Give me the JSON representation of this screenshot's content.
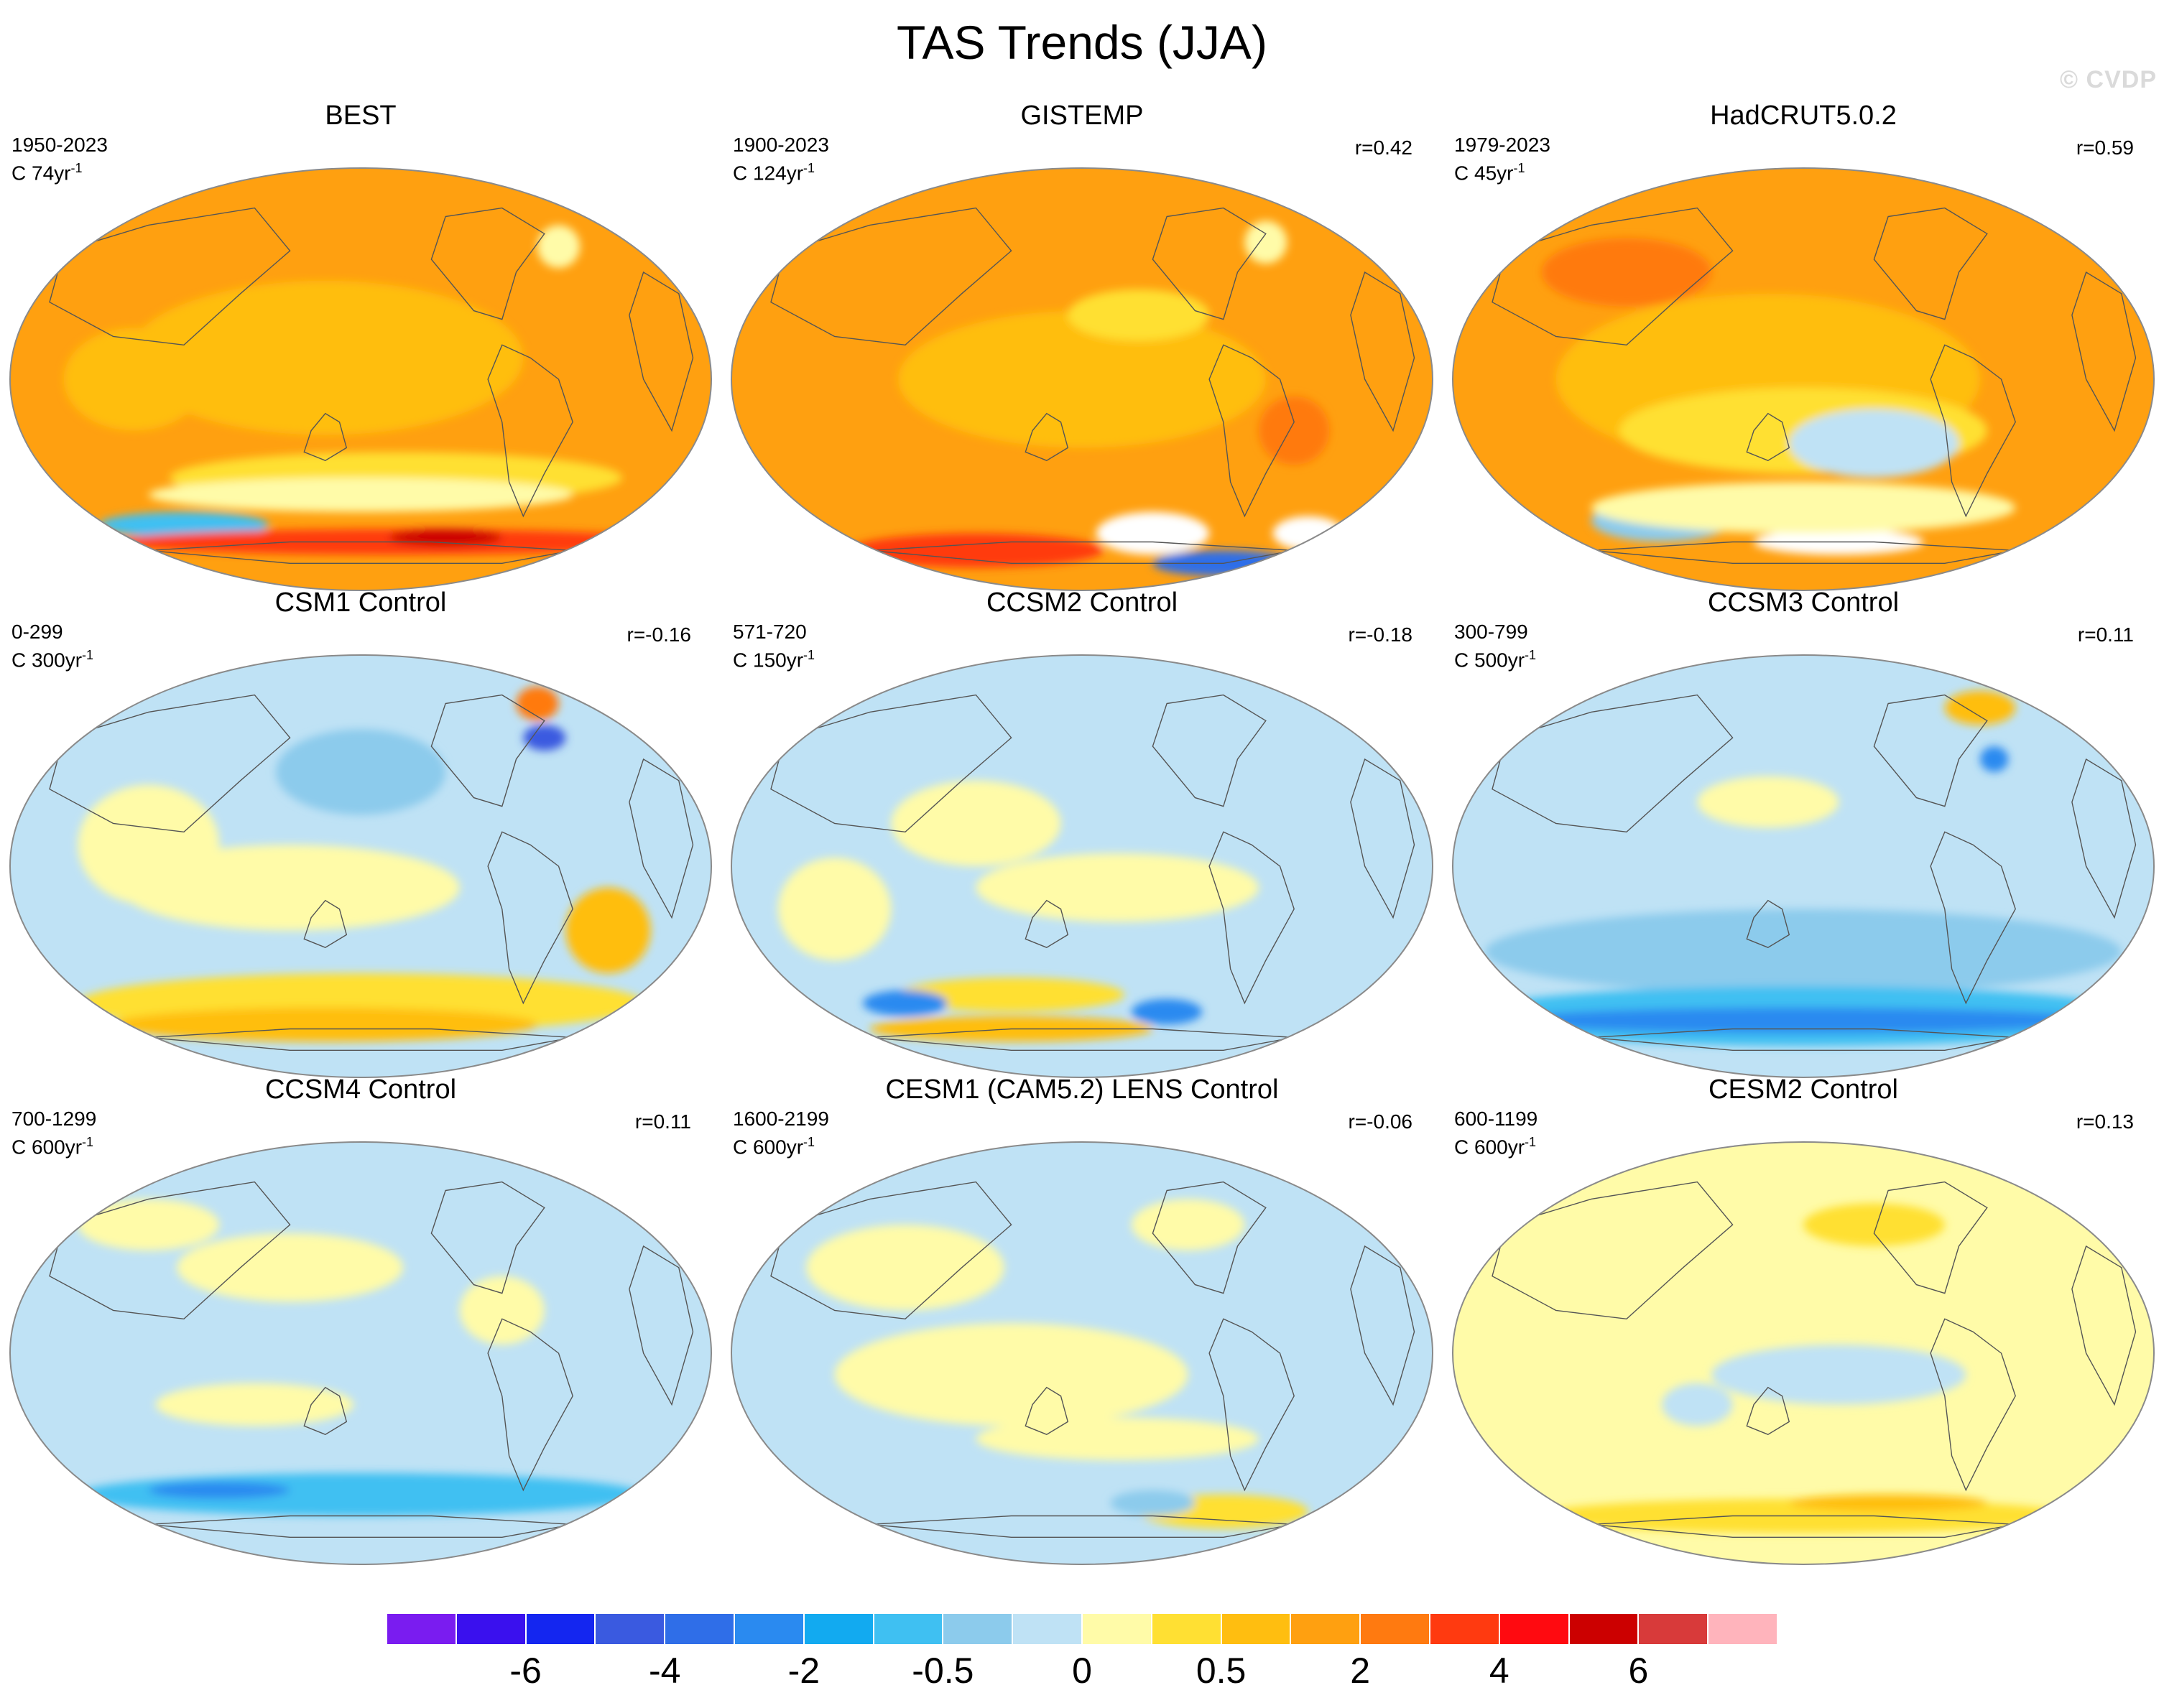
{
  "title": "TAS Trends (JJA)",
  "watermark": "© CVDP",
  "palette": {
    "ocean_base": "#bfe2f5",
    "land_outline": "#555555",
    "colorbar": [
      "#7a1cf0",
      "#3a10ee",
      "#1426f0",
      "#3a5ae0",
      "#2f6ee8",
      "#2a8af0",
      "#12aaf0",
      "#3fc0f2",
      "#8ccbec",
      "#bfe2f5",
      "#fffba8",
      "#ffe033",
      "#ffbe10",
      "#ffa010",
      "#ff7a10",
      "#ff3a10",
      "#ff0a10",
      "#cc0000",
      "#d83a3a",
      "#ffb4bc"
    ]
  },
  "colorbar_labels": [
    {
      "text": "-6",
      "box": 2
    },
    {
      "text": "-4",
      "box": 4
    },
    {
      "text": "-2",
      "box": 6
    },
    {
      "text": "-0.5",
      "box": 8
    },
    {
      "text": "0",
      "box": 10
    },
    {
      "text": "0.5",
      "box": 12
    },
    {
      "text": "2",
      "box": 14
    },
    {
      "text": "4",
      "box": 16
    },
    {
      "text": "6",
      "box": 18
    }
  ],
  "panels": [
    {
      "title": "BEST",
      "period": "1950-2023",
      "length": "C 74yr",
      "length_sup": "-1",
      "r": "",
      "base": "#ffa010",
      "blobs": [
        [
          "#ffbe10",
          0.45,
          0.45,
          0.28,
          0.18
        ],
        [
          "#ffe033",
          0.55,
          0.73,
          0.32,
          0.06
        ],
        [
          "#fffba8",
          0.5,
          0.77,
          0.3,
          0.04
        ],
        [
          "#3fc0f2",
          0.25,
          0.84,
          0.12,
          0.03
        ],
        [
          "#ff3a10",
          0.55,
          0.88,
          0.4,
          0.03
        ],
        [
          "#cc0000",
          0.62,
          0.87,
          0.08,
          0.02
        ],
        [
          "#fffba8",
          0.78,
          0.19,
          0.03,
          0.05
        ],
        [
          "#ffbe10",
          0.18,
          0.5,
          0.1,
          0.12
        ]
      ]
    },
    {
      "title": "GISTEMP",
      "period": "1900-2023",
      "length": "C 124yr",
      "length_sup": "-1",
      "r": "r=0.42",
      "base": "#ffa010",
      "blobs": [
        [
          "#ffbe10",
          0.5,
          0.5,
          0.26,
          0.16
        ],
        [
          "#ffe033",
          0.58,
          0.35,
          0.1,
          0.06
        ],
        [
          "#ff7a10",
          0.8,
          0.62,
          0.05,
          0.08
        ],
        [
          "#ff3a10",
          0.35,
          0.9,
          0.18,
          0.04
        ],
        [
          "#ffffff",
          0.6,
          0.86,
          0.08,
          0.05
        ],
        [
          "#ffffff",
          0.82,
          0.86,
          0.05,
          0.04
        ],
        [
          "#2f6ee8",
          0.7,
          0.93,
          0.1,
          0.03
        ],
        [
          "#fffba8",
          0.76,
          0.18,
          0.03,
          0.05
        ]
      ]
    },
    {
      "title": "HadCRUT5.0.2",
      "period": "1979-2023",
      "length": "C 45yr",
      "length_sup": "-1",
      "r": "r=0.59",
      "base": "#ffa010",
      "blobs": [
        [
          "#ffbe10",
          0.45,
          0.5,
          0.3,
          0.2
        ],
        [
          "#ffe033",
          0.5,
          0.62,
          0.26,
          0.1
        ],
        [
          "#bfe2f5",
          0.6,
          0.65,
          0.12,
          0.08
        ],
        [
          "#8ccbec",
          0.3,
          0.83,
          0.1,
          0.05
        ],
        [
          "#ffffff",
          0.55,
          0.88,
          0.12,
          0.03
        ],
        [
          "#fffba8",
          0.5,
          0.8,
          0.3,
          0.06
        ],
        [
          "#ff7a10",
          0.25,
          0.25,
          0.12,
          0.08
        ]
      ]
    },
    {
      "title": "CSM1 Control",
      "period": "0-299",
      "length": "C 300yr",
      "length_sup": "-1",
      "r": "r=-0.16",
      "base": "#bfe2f5",
      "blobs": [
        [
          "#fffba8",
          0.4,
          0.55,
          0.24,
          0.1
        ],
        [
          "#fffba8",
          0.2,
          0.45,
          0.1,
          0.14
        ],
        [
          "#ffe033",
          0.5,
          0.82,
          0.4,
          0.07
        ],
        [
          "#ffbe10",
          0.45,
          0.87,
          0.3,
          0.04
        ],
        [
          "#ffbe10",
          0.85,
          0.65,
          0.06,
          0.1
        ],
        [
          "#8ccbec",
          0.5,
          0.28,
          0.12,
          0.1
        ],
        [
          "#ff7a10",
          0.75,
          0.12,
          0.03,
          0.04
        ],
        [
          "#3a5ae0",
          0.76,
          0.2,
          0.03,
          0.03
        ]
      ]
    },
    {
      "title": "CCSM2 Control",
      "period": "571-720",
      "length": "C 150yr",
      "length_sup": "-1",
      "r": "r=-0.18",
      "base": "#bfe2f5",
      "blobs": [
        [
          "#fffba8",
          0.35,
          0.4,
          0.12,
          0.1
        ],
        [
          "#fffba8",
          0.55,
          0.55,
          0.2,
          0.08
        ],
        [
          "#fffba8",
          0.15,
          0.6,
          0.08,
          0.12
        ],
        [
          "#ffe033",
          0.4,
          0.8,
          0.16,
          0.04
        ],
        [
          "#ffbe10",
          0.4,
          0.88,
          0.2,
          0.03
        ],
        [
          "#2a8af0",
          0.25,
          0.82,
          0.06,
          0.03
        ],
        [
          "#2a8af0",
          0.62,
          0.84,
          0.05,
          0.03
        ]
      ]
    },
    {
      "title": "CCSM3 Control",
      "period": "300-799",
      "length": "C 500yr",
      "length_sup": "-1",
      "r": "r=0.11",
      "base": "#bfe2f5",
      "blobs": [
        [
          "#8ccbec",
          0.5,
          0.7,
          0.45,
          0.1
        ],
        [
          "#3fc0f2",
          0.5,
          0.85,
          0.48,
          0.07
        ],
        [
          "#2a8af0",
          0.5,
          0.86,
          0.42,
          0.03
        ],
        [
          "#fffba8",
          0.45,
          0.35,
          0.1,
          0.06
        ],
        [
          "#ffbe10",
          0.75,
          0.13,
          0.05,
          0.04
        ],
        [
          "#2a8af0",
          0.77,
          0.25,
          0.02,
          0.03
        ]
      ]
    },
    {
      "title": "CCSM4 Control",
      "period": "700-1299",
      "length": "C 600yr",
      "length_sup": "-1",
      "r": "r=0.11",
      "base": "#bfe2f5",
      "blobs": [
        [
          "#fffba8",
          0.4,
          0.3,
          0.16,
          0.08
        ],
        [
          "#fffba8",
          0.35,
          0.62,
          0.14,
          0.05
        ],
        [
          "#fffba8",
          0.7,
          0.4,
          0.06,
          0.08
        ],
        [
          "#3fc0f2",
          0.5,
          0.83,
          0.4,
          0.05
        ],
        [
          "#2a8af0",
          0.3,
          0.82,
          0.1,
          0.02
        ],
        [
          "#fffba8",
          0.2,
          0.2,
          0.1,
          0.06
        ]
      ]
    },
    {
      "title": "CESM1 (CAM5.2) LENS Control",
      "period": "1600-2199",
      "length": "C 600yr",
      "length_sup": "-1",
      "r": "r=-0.06",
      "base": "#bfe2f5",
      "blobs": [
        [
          "#fffba8",
          0.4,
          0.55,
          0.25,
          0.12
        ],
        [
          "#fffba8",
          0.25,
          0.3,
          0.14,
          0.1
        ],
        [
          "#fffba8",
          0.55,
          0.7,
          0.2,
          0.05
        ],
        [
          "#ffe033",
          0.7,
          0.87,
          0.12,
          0.04
        ],
        [
          "#8ccbec",
          0.6,
          0.85,
          0.06,
          0.03
        ],
        [
          "#fffba8",
          0.65,
          0.2,
          0.08,
          0.06
        ]
      ]
    },
    {
      "title": "CESM2 Control",
      "period": "600-1199",
      "length": "C 600yr",
      "length_sup": "-1",
      "r": "r=0.13",
      "base": "#fffba8",
      "blobs": [
        [
          "#bfe2f5",
          0.55,
          0.55,
          0.18,
          0.07
        ],
        [
          "#bfe2f5",
          0.35,
          0.62,
          0.05,
          0.05
        ],
        [
          "#ffe033",
          0.5,
          0.88,
          0.38,
          0.04
        ],
        [
          "#ffbe10",
          0.62,
          0.85,
          0.14,
          0.02
        ],
        [
          "#ffe033",
          0.6,
          0.2,
          0.1,
          0.05
        ]
      ]
    }
  ]
}
